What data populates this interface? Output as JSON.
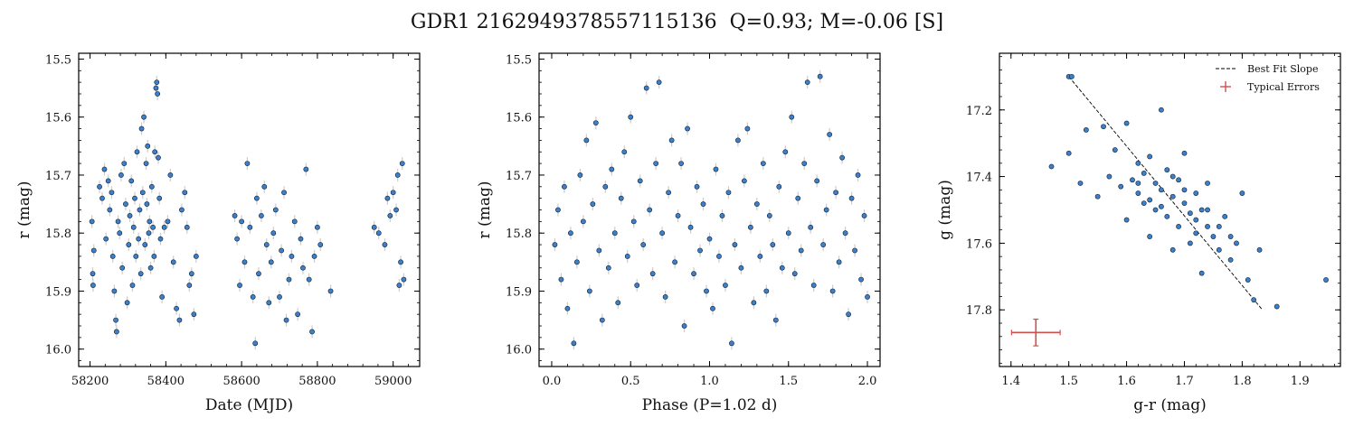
{
  "figure": {
    "title": "GDR1 2162949378557115136  Q=0.93; M=-0.06 [S]"
  },
  "colors": {
    "point_fill": "#3d7fc9",
    "point_edge": "#0d1f33",
    "error_bar": "#cccccc",
    "typical_error": "#d0504d",
    "fit_line": "#000000"
  },
  "chart_data": [
    {
      "id": "time",
      "type": "scatter",
      "xlabel": "Date (MJD)",
      "ylabel": "r (mag)",
      "xlim": [
        58170,
        59070
      ],
      "ylim": [
        16.03,
        15.49
      ],
      "y_inverted": true,
      "xticks": [
        58200,
        58400,
        58600,
        58800,
        59000
      ],
      "xticklabels": [
        "58200",
        "58400",
        "58600",
        "58800",
        "59000"
      ],
      "yticks": [
        15.5,
        15.6,
        15.7,
        15.8,
        15.9,
        16.0
      ],
      "yticklabels": [
        "15.5",
        "15.6",
        "15.7",
        "15.8",
        "15.9",
        "16.0"
      ],
      "points": [
        [
          58205,
          15.78
        ],
        [
          58207,
          15.87
        ],
        [
          58208,
          15.89
        ],
        [
          58210,
          15.83
        ],
        [
          58225,
          15.72
        ],
        [
          58232,
          15.74
        ],
        [
          58238,
          15.69
        ],
        [
          58242,
          15.81
        ],
        [
          58248,
          15.71
        ],
        [
          58252,
          15.76
        ],
        [
          58257,
          15.73
        ],
        [
          58260,
          15.84
        ],
        [
          58264,
          15.9
        ],
        [
          58268,
          15.95
        ],
        [
          58270,
          15.97
        ],
        [
          58274,
          15.78
        ],
        [
          58278,
          15.8
        ],
        [
          58282,
          15.7
        ],
        [
          58285,
          15.86
        ],
        [
          58290,
          15.68
        ],
        [
          58294,
          15.75
        ],
        [
          58298,
          15.92
        ],
        [
          58302,
          15.82
        ],
        [
          58305,
          15.77
        ],
        [
          58309,
          15.71
        ],
        [
          58312,
          15.89
        ],
        [
          58315,
          15.79
        ],
        [
          58318,
          15.74
        ],
        [
          58321,
          15.84
        ],
        [
          58324,
          15.66
        ],
        [
          58328,
          15.81
        ],
        [
          58331,
          15.76
        ],
        [
          58334,
          15.87
        ],
        [
          58336,
          15.62
        ],
        [
          58339,
          15.73
        ],
        [
          58342,
          15.6
        ],
        [
          58345,
          15.82
        ],
        [
          58348,
          15.68
        ],
        [
          58350,
          15.75
        ],
        [
          58352,
          15.65
        ],
        [
          58355,
          15.8
        ],
        [
          58357,
          15.78
        ],
        [
          58360,
          15.86
        ],
        [
          58363,
          15.72
        ],
        [
          58366,
          15.79
        ],
        [
          58369,
          15.84
        ],
        [
          58371,
          15.66
        ],
        [
          58374,
          15.55
        ],
        [
          58376,
          15.54
        ],
        [
          58378,
          15.56
        ],
        [
          58380,
          15.67
        ],
        [
          58383,
          15.74
        ],
        [
          58386,
          15.81
        ],
        [
          58390,
          15.91
        ],
        [
          58396,
          15.79
        ],
        [
          58405,
          15.78
        ],
        [
          58412,
          15.7
        ],
        [
          58420,
          15.85
        ],
        [
          58428,
          15.93
        ],
        [
          58436,
          15.95
        ],
        [
          58442,
          15.76
        ],
        [
          58450,
          15.73
        ],
        [
          58456,
          15.79
        ],
        [
          58462,
          15.89
        ],
        [
          58468,
          15.87
        ],
        [
          58474,
          15.94
        ],
        [
          58480,
          15.84
        ],
        [
          58582,
          15.77
        ],
        [
          58588,
          15.81
        ],
        [
          58595,
          15.89
        ],
        [
          58600,
          15.78
        ],
        [
          58608,
          15.85
        ],
        [
          58615,
          15.68
        ],
        [
          58622,
          15.79
        ],
        [
          58630,
          15.91
        ],
        [
          58636,
          15.99
        ],
        [
          58640,
          15.74
        ],
        [
          58645,
          15.87
        ],
        [
          58652,
          15.77
        ],
        [
          58660,
          15.72
        ],
        [
          58666,
          15.82
        ],
        [
          58672,
          15.92
        ],
        [
          58678,
          15.85
        ],
        [
          58684,
          15.8
        ],
        [
          58690,
          15.76
        ],
        [
          58700,
          15.91
        ],
        [
          58705,
          15.83
        ],
        [
          58712,
          15.73
        ],
        [
          58718,
          15.95
        ],
        [
          58725,
          15.88
        ],
        [
          58732,
          15.84
        ],
        [
          58740,
          15.78
        ],
        [
          58748,
          15.94
        ],
        [
          58756,
          15.81
        ],
        [
          58762,
          15.86
        ],
        [
          58770,
          15.69
        ],
        [
          58778,
          15.88
        ],
        [
          58786,
          15.97
        ],
        [
          58792,
          15.84
        ],
        [
          58800,
          15.79
        ],
        [
          58808,
          15.82
        ],
        [
          58835,
          15.9
        ],
        [
          58950,
          15.79
        ],
        [
          58962,
          15.8
        ],
        [
          58978,
          15.82
        ],
        [
          58985,
          15.74
        ],
        [
          58992,
          15.77
        ],
        [
          59000,
          15.73
        ],
        [
          59008,
          15.76
        ],
        [
          59012,
          15.7
        ],
        [
          59016,
          15.89
        ],
        [
          59020,
          15.85
        ],
        [
          59024,
          15.68
        ],
        [
          59028,
          15.88
        ]
      ]
    },
    {
      "id": "phase",
      "type": "scatter",
      "xlabel": "Phase (P=1.02 d)",
      "ylabel": "r (mag)",
      "xlim": [
        -0.08,
        2.08
      ],
      "ylim": [
        16.03,
        15.49
      ],
      "y_inverted": true,
      "xticks": [
        0.0,
        0.5,
        1.0,
        1.5,
        2.0
      ],
      "xticklabels": [
        "0.0",
        "0.5",
        "1.0",
        "1.5",
        "2.0"
      ],
      "yticks": [
        15.5,
        15.6,
        15.7,
        15.8,
        15.9,
        16.0
      ],
      "yticklabels": [
        "15.5",
        "15.6",
        "15.7",
        "15.8",
        "15.9",
        "16.0"
      ],
      "points": [
        [
          0.02,
          15.82
        ],
        [
          0.04,
          15.76
        ],
        [
          0.06,
          15.88
        ],
        [
          0.08,
          15.72
        ],
        [
          0.1,
          15.93
        ],
        [
          0.12,
          15.8
        ],
        [
          0.14,
          15.99
        ],
        [
          0.16,
          15.85
        ],
        [
          0.18,
          15.7
        ],
        [
          0.2,
          15.78
        ],
        [
          0.22,
          15.64
        ],
        [
          0.24,
          15.9
        ],
        [
          0.26,
          15.75
        ],
        [
          0.28,
          15.61
        ],
        [
          0.3,
          15.83
        ],
        [
          0.32,
          15.95
        ],
        [
          0.34,
          15.72
        ],
        [
          0.36,
          15.86
        ],
        [
          0.38,
          15.69
        ],
        [
          0.4,
          15.8
        ],
        [
          0.42,
          15.92
        ],
        [
          0.44,
          15.74
        ],
        [
          0.46,
          15.66
        ],
        [
          0.48,
          15.84
        ],
        [
          0.5,
          15.6
        ],
        [
          0.52,
          15.78
        ],
        [
          0.54,
          15.89
        ],
        [
          0.56,
          15.71
        ],
        [
          0.58,
          15.82
        ],
        [
          0.6,
          15.55
        ],
        [
          0.62,
          15.76
        ],
        [
          0.64,
          15.87
        ],
        [
          0.66,
          15.68
        ],
        [
          0.68,
          15.54
        ],
        [
          0.7,
          15.8
        ],
        [
          0.72,
          15.91
        ],
        [
          0.74,
          15.73
        ],
        [
          0.76,
          15.64
        ],
        [
          0.78,
          15.85
        ],
        [
          0.8,
          15.77
        ],
        [
          0.82,
          15.68
        ],
        [
          0.84,
          15.96
        ],
        [
          0.86,
          15.62
        ],
        [
          0.88,
          15.79
        ],
        [
          0.9,
          15.87
        ],
        [
          0.92,
          15.72
        ],
        [
          0.94,
          15.83
        ],
        [
          0.96,
          15.75
        ],
        [
          0.98,
          15.9
        ],
        [
          1.0,
          15.81
        ],
        [
          1.02,
          15.93
        ],
        [
          1.04,
          15.69
        ],
        [
          1.06,
          15.84
        ],
        [
          1.08,
          15.77
        ],
        [
          1.1,
          15.89
        ],
        [
          1.12,
          15.73
        ],
        [
          1.14,
          15.99
        ],
        [
          1.16,
          15.82
        ],
        [
          1.18,
          15.64
        ],
        [
          1.2,
          15.86
        ],
        [
          1.22,
          15.71
        ],
        [
          1.24,
          15.62
        ],
        [
          1.26,
          15.79
        ],
        [
          1.28,
          15.92
        ],
        [
          1.3,
          15.75
        ],
        [
          1.32,
          15.84
        ],
        [
          1.34,
          15.68
        ],
        [
          1.36,
          15.9
        ],
        [
          1.38,
          15.77
        ],
        [
          1.4,
          15.82
        ],
        [
          1.42,
          15.95
        ],
        [
          1.44,
          15.72
        ],
        [
          1.46,
          15.86
        ],
        [
          1.48,
          15.66
        ],
        [
          1.5,
          15.8
        ],
        [
          1.52,
          15.6
        ],
        [
          1.54,
          15.87
        ],
        [
          1.56,
          15.74
        ],
        [
          1.58,
          15.83
        ],
        [
          1.6,
          15.68
        ],
        [
          1.62,
          15.54
        ],
        [
          1.64,
          15.79
        ],
        [
          1.66,
          15.89
        ],
        [
          1.68,
          15.71
        ],
        [
          1.7,
          15.53
        ],
        [
          1.72,
          15.82
        ],
        [
          1.74,
          15.76
        ],
        [
          1.76,
          15.63
        ],
        [
          1.78,
          15.9
        ],
        [
          1.8,
          15.73
        ],
        [
          1.82,
          15.85
        ],
        [
          1.84,
          15.67
        ],
        [
          1.86,
          15.8
        ],
        [
          1.88,
          15.94
        ],
        [
          1.9,
          15.74
        ],
        [
          1.92,
          15.83
        ],
        [
          1.94,
          15.7
        ],
        [
          1.96,
          15.88
        ],
        [
          1.98,
          15.77
        ],
        [
          2.0,
          15.91
        ]
      ]
    },
    {
      "id": "color",
      "type": "scatter",
      "xlabel": "g-r (mag)",
      "ylabel": "g (mag)",
      "xlim": [
        1.38,
        1.97
      ],
      "ylim": [
        17.97,
        17.03
      ],
      "y_inverted": true,
      "xticks": [
        1.4,
        1.5,
        1.6,
        1.7,
        1.8,
        1.9
      ],
      "xticklabels": [
        "1.4",
        "1.5",
        "1.6",
        "1.7",
        "1.8",
        "1.9"
      ],
      "yticks": [
        17.2,
        17.4,
        17.6,
        17.8
      ],
      "yticklabels": [
        "17.2",
        "17.4",
        "17.6",
        "17.8"
      ],
      "fit_line": [
        [
          1.5,
          17.1
        ],
        [
          1.835,
          17.8
        ]
      ],
      "typical_error": {
        "x": 1.443,
        "y": 17.868,
        "xerr": 0.042,
        "yerr": 0.04
      },
      "legend": {
        "location": "upper right",
        "entries": [
          {
            "label": "Best Fit Slope"
          },
          {
            "label": "Typical Errors"
          }
        ]
      },
      "points": [
        [
          1.5,
          17.1
        ],
        [
          1.505,
          17.1
        ],
        [
          1.47,
          17.37
        ],
        [
          1.5,
          17.33
        ],
        [
          1.52,
          17.42
        ],
        [
          1.53,
          17.26
        ],
        [
          1.55,
          17.46
        ],
        [
          1.56,
          17.25
        ],
        [
          1.57,
          17.4
        ],
        [
          1.58,
          17.32
        ],
        [
          1.59,
          17.43
        ],
        [
          1.6,
          17.24
        ],
        [
          1.6,
          17.53
        ],
        [
          1.61,
          17.41
        ],
        [
          1.62,
          17.45
        ],
        [
          1.62,
          17.36
        ],
        [
          1.63,
          17.39
        ],
        [
          1.63,
          17.48
        ],
        [
          1.64,
          17.34
        ],
        [
          1.64,
          17.58
        ],
        [
          1.65,
          17.42
        ],
        [
          1.65,
          17.5
        ],
        [
          1.66,
          17.44
        ],
        [
          1.66,
          17.2
        ],
        [
          1.67,
          17.38
        ],
        [
          1.67,
          17.52
        ],
        [
          1.68,
          17.46
        ],
        [
          1.68,
          17.62
        ],
        [
          1.69,
          17.41
        ],
        [
          1.69,
          17.55
        ],
        [
          1.7,
          17.48
        ],
        [
          1.7,
          17.33
        ],
        [
          1.71,
          17.51
        ],
        [
          1.71,
          17.6
        ],
        [
          1.72,
          17.45
        ],
        [
          1.72,
          17.57
        ],
        [
          1.73,
          17.5
        ],
        [
          1.73,
          17.69
        ],
        [
          1.74,
          17.55
        ],
        [
          1.74,
          17.42
        ],
        [
          1.75,
          17.58
        ],
        [
          1.76,
          17.62
        ],
        [
          1.77,
          17.52
        ],
        [
          1.78,
          17.65
        ],
        [
          1.79,
          17.6
        ],
        [
          1.8,
          17.45
        ],
        [
          1.81,
          17.71
        ],
        [
          1.82,
          17.77
        ],
        [
          1.83,
          17.62
        ],
        [
          1.86,
          17.79
        ],
        [
          1.945,
          17.71
        ],
        [
          1.62,
          17.42
        ],
        [
          1.64,
          17.47
        ],
        [
          1.66,
          17.49
        ],
        [
          1.68,
          17.4
        ],
        [
          1.7,
          17.44
        ],
        [
          1.72,
          17.53
        ],
        [
          1.74,
          17.5
        ],
        [
          1.76,
          17.55
        ],
        [
          1.78,
          17.58
        ]
      ]
    }
  ]
}
